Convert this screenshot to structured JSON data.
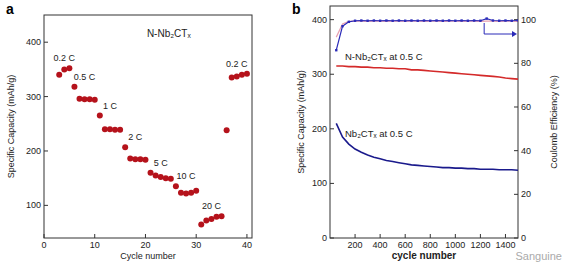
{
  "chart_data": [
    {
      "type": "scatter",
      "title": "a",
      "annotation": "N-Nb₂CTₓ",
      "x_label": "Cycle number",
      "y_label": "Specific Capacity (mAh/g)",
      "xlim": [
        0,
        41
      ],
      "xticks": [
        0,
        10,
        20,
        30,
        40
      ],
      "ylim": [
        40,
        450
      ],
      "yticks": [
        100,
        200,
        300,
        400
      ],
      "color": "#b5121b",
      "marker": "circle",
      "series": [
        {
          "name": "0.2 C",
          "x": [
            3,
            4,
            5
          ],
          "values": [
            340,
            350,
            352
          ]
        },
        {
          "name": "0.5 C",
          "x": [
            6,
            7,
            8,
            9,
            10
          ],
          "values": [
            318,
            296,
            295,
            295,
            294
          ]
        },
        {
          "name": "1 C",
          "x": [
            11,
            12,
            13,
            14,
            15
          ],
          "values": [
            265,
            240,
            240,
            239,
            239
          ]
        },
        {
          "name": "2 C",
          "x": [
            16,
            17,
            18,
            19,
            20
          ],
          "values": [
            207,
            186,
            185,
            185,
            184
          ]
        },
        {
          "name": "5 C",
          "x": [
            21,
            22,
            23,
            24,
            25
          ],
          "values": [
            160,
            155,
            152,
            150,
            149
          ]
        },
        {
          "name": "10 C",
          "x": [
            26,
            27,
            28,
            29,
            30
          ],
          "values": [
            135,
            123,
            122,
            123,
            127
          ]
        },
        {
          "name": "20 C",
          "x": [
            31,
            32,
            33,
            34,
            35
          ],
          "values": [
            65,
            72,
            75,
            79,
            80
          ]
        },
        {
          "name": "0.2 C",
          "x": [
            36,
            37,
            38,
            39,
            40
          ],
          "values": [
            238,
            335,
            337,
            340,
            342
          ]
        }
      ]
    },
    {
      "type": "line",
      "title": "b",
      "x_label": "cycle number",
      "y_label": "Specific Capacity (mAh/g)",
      "y2_label": "Coulomb Efficiency (%)",
      "xlim": [
        0,
        1500
      ],
      "xticks": [
        200,
        400,
        600,
        800,
        1000,
        1200,
        1400
      ],
      "ylim": [
        0,
        425
      ],
      "yticks": [
        0,
        100,
        200,
        300,
        400
      ],
      "y2lim": [
        0,
        106.25
      ],
      "y2ticks": [
        0,
        20,
        40,
        60,
        80,
        100
      ],
      "x": [
        50,
        100,
        150,
        200,
        250,
        300,
        350,
        400,
        450,
        500,
        550,
        600,
        650,
        700,
        750,
        800,
        850,
        900,
        950,
        1000,
        1050,
        1100,
        1150,
        1200,
        1250,
        1300,
        1350,
        1400,
        1450,
        1500
      ],
      "series": [
        {
          "name": "N-Nb₂CTₓ at 0.5 C",
          "color": "#d42a2a",
          "values": [
            315,
            315,
            314,
            314,
            313,
            313,
            312,
            312,
            311,
            311,
            310,
            310,
            308,
            308,
            307,
            306,
            305,
            304,
            303,
            302,
            301,
            300,
            299,
            298,
            297,
            296,
            295,
            293,
            292,
            291
          ]
        },
        {
          "name": "Nb₂CTₓ at 0.5 C",
          "color": "#1a1a8c",
          "values": [
            210,
            185,
            172,
            163,
            157,
            152,
            148,
            145,
            142,
            140,
            138,
            136,
            134,
            133,
            132,
            131,
            130,
            129,
            129,
            128,
            128,
            127,
            127,
            126,
            126,
            126,
            125,
            125,
            125,
            124
          ]
        },
        {
          "color": "#e8a0b0",
          "axis": "y2",
          "values": [
            92,
            98,
            99.2,
            99.3,
            99.3,
            99.2,
            99.3,
            99.3,
            99.2,
            99.3,
            99.3,
            99.2,
            99.3,
            99.3,
            99.2,
            99.3,
            99.3,
            99.2,
            99.3,
            99.3,
            99.2,
            99.3,
            99.3,
            99.2,
            99.3,
            99.3,
            99.2,
            99.3,
            99.3,
            99.2
          ]
        },
        {
          "color": "#2a2ab8",
          "axis": "y2",
          "marker": "square",
          "values": [
            86,
            97,
            99,
            99.5,
            99.6,
            99.5,
            99.6,
            99.5,
            99.6,
            99.5,
            99.6,
            99.5,
            99.6,
            99.5,
            99.6,
            99.5,
            99.6,
            99.5,
            99.6,
            99.5,
            99.6,
            99.5,
            99.6,
            99.5,
            100.5,
            99.6,
            99.5,
            99.6,
            99.5,
            99.6
          ]
        }
      ]
    }
  ],
  "watermark": "Sanguine"
}
